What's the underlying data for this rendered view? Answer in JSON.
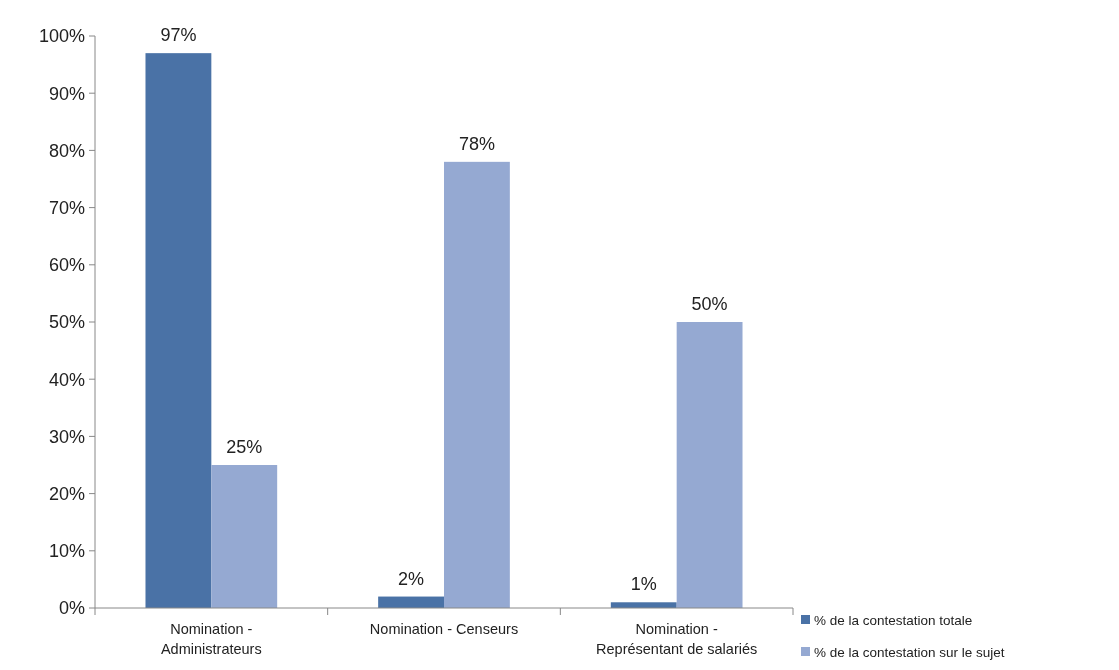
{
  "chart_data": {
    "type": "bar",
    "categories": [
      "Nomination - Administrateurs",
      "Nomination - Censeurs",
      "Nomination - Représentant de salariés"
    ],
    "series": [
      {
        "name": "% de la contestation totale",
        "color": "#4a72a6",
        "values": [
          97,
          2,
          1
        ],
        "value_labels": [
          "97%",
          "2%",
          "1%"
        ]
      },
      {
        "name": "% de la contestation sur le sujet",
        "color": "#95a9d2",
        "values": [
          25,
          78,
          50
        ],
        "value_labels": [
          "25%",
          "78%",
          "50%"
        ]
      }
    ],
    "ylim": [
      0,
      100
    ],
    "yticks": [
      {
        "value": 0,
        "label": "0%"
      },
      {
        "value": 10,
        "label": "10%"
      },
      {
        "value": 20,
        "label": "20%"
      },
      {
        "value": 30,
        "label": "30%"
      },
      {
        "value": 40,
        "label": "40%"
      },
      {
        "value": 50,
        "label": "50%"
      },
      {
        "value": 60,
        "label": "60%"
      },
      {
        "value": 70,
        "label": "70%"
      },
      {
        "value": 80,
        "label": "80%"
      },
      {
        "value": 90,
        "label": "90%"
      },
      {
        "value": 100,
        "label": "100%"
      }
    ],
    "grid": false,
    "legend": "bottom right"
  }
}
